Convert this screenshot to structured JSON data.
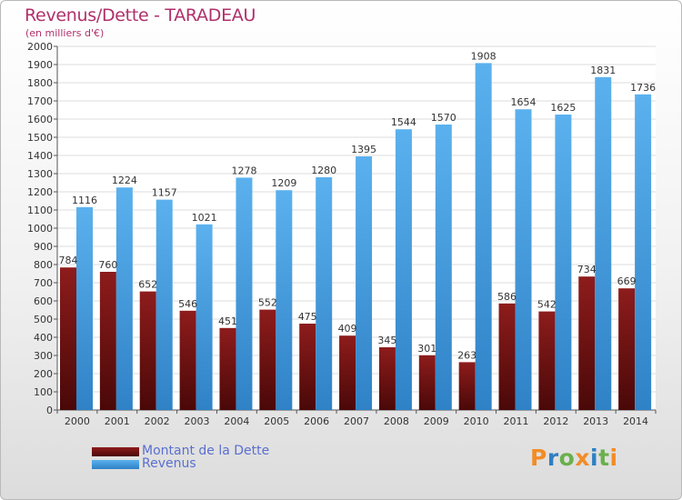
{
  "header": {
    "title": "Revenus/Dette - TARADEAU",
    "subtitle": "(en milliers d'€)"
  },
  "legend": [
    {
      "label": "Montant de la Dette",
      "color": "#7a1414"
    },
    {
      "label": "Revenus",
      "color": "#4ea3e0"
    }
  ],
  "brand": {
    "letters": [
      "P",
      "r",
      "o",
      "x",
      "i",
      "t",
      "i"
    ],
    "colors": [
      "#f28c28",
      "#2f7fc1",
      "#6ab04c",
      "#f28c28",
      "#2f7fc1",
      "#6ab04c",
      "#f28c28"
    ]
  },
  "chart_data": {
    "type": "bar",
    "categories": [
      "2000",
      "2001",
      "2002",
      "2003",
      "2004",
      "2005",
      "2006",
      "2007",
      "2008",
      "2009",
      "2010",
      "2011",
      "2012",
      "2013",
      "2014"
    ],
    "series": [
      {
        "name": "Montant de la Dette",
        "color": "#7a1414",
        "values": [
          784,
          760,
          652,
          546,
          451,
          552,
          475,
          409,
          345,
          301,
          263,
          586,
          542,
          734,
          669
        ]
      },
      {
        "name": "Revenus",
        "color": "#4ea3e0",
        "values": [
          1116,
          1224,
          1157,
          1021,
          1278,
          1209,
          1280,
          1395,
          1544,
          1570,
          1908,
          1654,
          1625,
          1831,
          1736
        ]
      }
    ],
    "ylim": [
      0,
      2000
    ],
    "ytick_step": 100,
    "grid": true,
    "legend_position": "bottom-left"
  }
}
